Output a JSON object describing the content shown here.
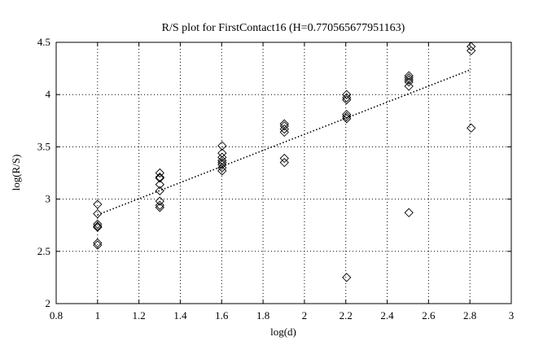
{
  "chart_data": {
    "type": "scatter",
    "title": "R/S plot for FirstContact16 (H=0.770565677951163)",
    "xlabel": "log(d)",
    "ylabel": "log(R/S)",
    "xlim": [
      0.8,
      3
    ],
    "ylim": [
      2,
      4.5
    ],
    "x_ticks": [
      "0.8",
      "1",
      "1.2",
      "1.4",
      "1.6",
      "1.8",
      "2",
      "2.2",
      "2.4",
      "2.6",
      "2.8",
      "3"
    ],
    "y_ticks": [
      "2",
      "2.5",
      "3",
      "3.5",
      "4",
      "4.5"
    ],
    "grid": true,
    "marker": "diamond",
    "series": [
      {
        "points": [
          [
            1.0,
            2.95
          ],
          [
            1.0,
            2.86
          ],
          [
            1.0,
            2.76
          ],
          [
            1.0,
            2.74
          ],
          [
            1.0,
            2.73
          ],
          [
            1.0,
            2.58
          ],
          [
            1.0,
            2.56
          ],
          [
            1.301,
            3.25
          ],
          [
            1.301,
            3.21
          ],
          [
            1.301,
            3.2
          ],
          [
            1.301,
            3.14
          ],
          [
            1.301,
            3.08
          ],
          [
            1.301,
            2.98
          ],
          [
            1.301,
            2.94
          ],
          [
            1.301,
            2.92
          ],
          [
            1.602,
            3.51
          ],
          [
            1.602,
            3.44
          ],
          [
            1.602,
            3.4
          ],
          [
            1.602,
            3.37
          ],
          [
            1.602,
            3.35
          ],
          [
            1.602,
            3.33
          ],
          [
            1.602,
            3.3
          ],
          [
            1.602,
            3.27
          ],
          [
            1.903,
            3.72
          ],
          [
            1.903,
            3.7
          ],
          [
            1.903,
            3.67
          ],
          [
            1.903,
            3.64
          ],
          [
            1.903,
            3.39
          ],
          [
            1.903,
            3.35
          ],
          [
            2.204,
            4.0
          ],
          [
            2.204,
            3.97
          ],
          [
            2.204,
            3.95
          ],
          [
            2.204,
            3.81
          ],
          [
            2.204,
            3.79
          ],
          [
            2.204,
            3.77
          ],
          [
            2.204,
            2.25
          ],
          [
            2.505,
            4.18
          ],
          [
            2.505,
            4.16
          ],
          [
            2.505,
            4.14
          ],
          [
            2.505,
            4.12
          ],
          [
            2.505,
            4.08
          ],
          [
            2.505,
            2.87
          ],
          [
            2.806,
            4.46
          ],
          [
            2.806,
            4.42
          ],
          [
            2.806,
            3.68
          ]
        ]
      }
    ],
    "fit_line": {
      "x": [
        1.0,
        2.806
      ],
      "y": [
        2.85,
        4.24
      ]
    }
  }
}
